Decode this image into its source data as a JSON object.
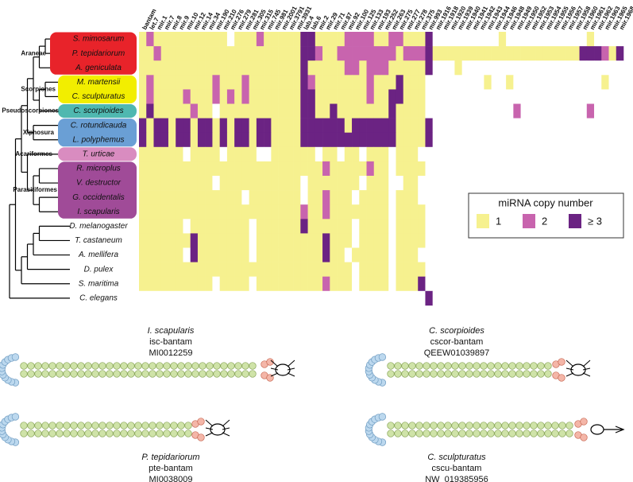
{
  "chart_data": {
    "type": "heatmap",
    "categories": [
      "bantam",
      "let.7",
      "mir.1",
      "mir.7",
      "mir.8",
      "mir.9",
      "mir.10",
      "mir.12",
      "mir.14",
      "mir.34",
      "mir.190",
      "mir.210",
      "mir.276",
      "mir.279",
      "mir.281",
      "mir.305",
      "mir.315",
      "mir.745",
      "mir.981",
      "mir.2001",
      "mir.3791",
      "mir.3931",
      "lab.4",
      "lab.6",
      "mir.2",
      "mir.29",
      "mir.71",
      "mir.87",
      "mir.92",
      "mir.100",
      "mir.125",
      "mir.133",
      "mir.193",
      "mir.252",
      "mir.263",
      "mir.275",
      "mir.277",
      "mir.278",
      "mir.375",
      "mir.993",
      "mir.1916",
      "mir.1918",
      "mir.1920",
      "mir.1939",
      "mir.1940",
      "mir.1941",
      "mir.1942",
      "mir.1943",
      "mir.1944",
      "mir.1946",
      "mir.1948",
      "mir.1949",
      "mir.1950",
      "mir.1952",
      "mir.1953",
      "mir.1954",
      "mir.1955",
      "mir.1956",
      "mir.1957",
      "mir.1958",
      "mir.1960",
      "mir.1961",
      "mir.1962",
      "mir.1963",
      "mir.1965",
      "mir.1968"
    ],
    "category_highlights": [
      {
        "index": 0,
        "color": "#3a9ad9"
      },
      {
        "index": 10,
        "color": "#3a9ad9"
      },
      {
        "index": 2,
        "color": "#e0262c"
      },
      {
        "index": 23,
        "color": "#e0262c"
      },
      {
        "index": 26,
        "color": "#e0262c"
      },
      {
        "index": 34,
        "color": "#e0262c"
      }
    ],
    "rows": [
      "S. mimosarum",
      "P. tepidariorum",
      "A. geniculata",
      "M. martensii",
      "C. sculpturatus",
      "C. scorpioides",
      "C. rotundicauda",
      "L. polyphemus",
      "T. urticae",
      "R. microplus",
      "V. destructor",
      "G. occidentalis",
      "I. scapularis",
      "D. melanogaster",
      "T. castaneum",
      "A. mellifera",
      "D. pulex",
      "S. maritima",
      "C. elegans"
    ],
    "values": [
      [
        1,
        2,
        1,
        1,
        1,
        1,
        1,
        1,
        1,
        1,
        1,
        1,
        0,
        1,
        1,
        1,
        2,
        1,
        1,
        1,
        1,
        1,
        3,
        3,
        1,
        1,
        1,
        1,
        2,
        2,
        2,
        2,
        1,
        1,
        2,
        2,
        1,
        1,
        1,
        3,
        0,
        0,
        0,
        0,
        0,
        0,
        0,
        0,
        0,
        1,
        0,
        0,
        0,
        0,
        0,
        0,
        0,
        0,
        0,
        0,
        0,
        1,
        0,
        0,
        0,
        0
      ],
      [
        1,
        1,
        2,
        1,
        1,
        1,
        1,
        1,
        1,
        1,
        1,
        1,
        1,
        1,
        1,
        1,
        1,
        1,
        1,
        1,
        1,
        1,
        3,
        3,
        2,
        1,
        1,
        2,
        2,
        2,
        2,
        2,
        2,
        2,
        2,
        1,
        2,
        2,
        2,
        3,
        1,
        1,
        1,
        1,
        1,
        1,
        1,
        1,
        1,
        1,
        1,
        1,
        1,
        1,
        1,
        1,
        1,
        1,
        1,
        1,
        3,
        3,
        3,
        2,
        1,
        3
      ],
      [
        1,
        1,
        1,
        1,
        1,
        1,
        1,
        1,
        1,
        1,
        1,
        1,
        1,
        1,
        1,
        1,
        1,
        1,
        1,
        1,
        1,
        1,
        3,
        1,
        1,
        1,
        1,
        1,
        2,
        2,
        1,
        2,
        2,
        2,
        1,
        1,
        1,
        1,
        1,
        3,
        0,
        0,
        0,
        1,
        0,
        0,
        0,
        0,
        0,
        0,
        0,
        0,
        0,
        0,
        0,
        0,
        0,
        0,
        0,
        0,
        0,
        0,
        0,
        0,
        0,
        0
      ],
      [
        1,
        2,
        1,
        1,
        1,
        1,
        1,
        1,
        1,
        1,
        2,
        1,
        1,
        1,
        2,
        1,
        1,
        1,
        1,
        1,
        1,
        1,
        3,
        2,
        1,
        1,
        1,
        1,
        1,
        1,
        1,
        2,
        1,
        1,
        1,
        3,
        1,
        1,
        1,
        0,
        0,
        0,
        0,
        0,
        0,
        0,
        0,
        1,
        0,
        0,
        1,
        0,
        0,
        0,
        0,
        0,
        0,
        0,
        0,
        0,
        0,
        0,
        0,
        1,
        0,
        0
      ],
      [
        1,
        2,
        1,
        1,
        1,
        1,
        2,
        1,
        1,
        1,
        2,
        1,
        2,
        1,
        2,
        1,
        1,
        1,
        1,
        1,
        1,
        1,
        3,
        3,
        1,
        1,
        1,
        1,
        1,
        1,
        1,
        2,
        1,
        1,
        3,
        3,
        1,
        1,
        1,
        0,
        0,
        0,
        0,
        0,
        0,
        0,
        0,
        0,
        0,
        0,
        0,
        0,
        0,
        0,
        0,
        0,
        0,
        0,
        0,
        0,
        0,
        0,
        0,
        0,
        0,
        0
      ],
      [
        1,
        3,
        1,
        1,
        1,
        1,
        1,
        2,
        1,
        1,
        0,
        1,
        1,
        1,
        1,
        1,
        1,
        1,
        1,
        1,
        1,
        1,
        3,
        3,
        1,
        1,
        3,
        1,
        1,
        1,
        1,
        1,
        1,
        1,
        3,
        1,
        1,
        1,
        1,
        0,
        0,
        0,
        0,
        0,
        0,
        0,
        0,
        0,
        0,
        0,
        0,
        2,
        0,
        0,
        0,
        0,
        0,
        0,
        0,
        0,
        0,
        2,
        0,
        0,
        0,
        0
      ],
      [
        3,
        1,
        3,
        3,
        1,
        3,
        3,
        1,
        3,
        3,
        1,
        3,
        1,
        3,
        3,
        1,
        3,
        3,
        1,
        1,
        1,
        1,
        3,
        3,
        3,
        3,
        3,
        3,
        1,
        3,
        3,
        3,
        3,
        3,
        3,
        1,
        1,
        1,
        1,
        3,
        0,
        0,
        0,
        0,
        0,
        0,
        0,
        0,
        0,
        0,
        0,
        0,
        0,
        0,
        0,
        0,
        0,
        0,
        0,
        0,
        0,
        0,
        0,
        0,
        0,
        0
      ],
      [
        3,
        1,
        3,
        3,
        1,
        3,
        3,
        1,
        3,
        3,
        1,
        3,
        1,
        3,
        3,
        1,
        3,
        3,
        1,
        1,
        1,
        1,
        3,
        3,
        3,
        3,
        3,
        3,
        3,
        3,
        3,
        3,
        3,
        3,
        3,
        1,
        1,
        1,
        1,
        3,
        0,
        0,
        0,
        0,
        0,
        0,
        0,
        0,
        0,
        0,
        0,
        0,
        0,
        0,
        0,
        0,
        0,
        0,
        0,
        0,
        0,
        0,
        0,
        0,
        0,
        0
      ],
      [
        1,
        1,
        1,
        1,
        1,
        1,
        0,
        1,
        1,
        1,
        1,
        0,
        1,
        1,
        1,
        1,
        0,
        0,
        1,
        1,
        1,
        1,
        1,
        1,
        0,
        1,
        1,
        0,
        1,
        1,
        0,
        1,
        1,
        1,
        0,
        1,
        1,
        1,
        0,
        0,
        0,
        0,
        0,
        0,
        0,
        0,
        0,
        0,
        0,
        0,
        0,
        0,
        0,
        0,
        0,
        0,
        0,
        0,
        0,
        0,
        0,
        0,
        0,
        0,
        0,
        0
      ],
      [
        1,
        1,
        1,
        1,
        1,
        1,
        1,
        1,
        1,
        1,
        1,
        1,
        1,
        1,
        1,
        1,
        1,
        1,
        1,
        1,
        1,
        1,
        1,
        1,
        1,
        2,
        1,
        1,
        1,
        1,
        1,
        2,
        1,
        1,
        0,
        1,
        1,
        1,
        1,
        0,
        0,
        0,
        0,
        0,
        0,
        0,
        0,
        0,
        0,
        0,
        0,
        0,
        0,
        0,
        0,
        0,
        0,
        0,
        0,
        0,
        0,
        0,
        0,
        0,
        0,
        0
      ],
      [
        1,
        1,
        1,
        1,
        1,
        1,
        1,
        1,
        1,
        1,
        0,
        1,
        1,
        1,
        1,
        1,
        1,
        1,
        1,
        1,
        1,
        1,
        0,
        1,
        1,
        1,
        1,
        1,
        1,
        1,
        0,
        1,
        1,
        1,
        0,
        0,
        1,
        1,
        0,
        0,
        0,
        0,
        0,
        0,
        0,
        0,
        0,
        0,
        0,
        0,
        0,
        0,
        0,
        0,
        0,
        0,
        0,
        0,
        0,
        0,
        0,
        0,
        0,
        0,
        0,
        0
      ],
      [
        1,
        1,
        1,
        1,
        1,
        1,
        1,
        1,
        1,
        1,
        1,
        1,
        1,
        1,
        0,
        1,
        1,
        1,
        1,
        1,
        1,
        1,
        0,
        1,
        1,
        2,
        1,
        1,
        1,
        0,
        1,
        1,
        1,
        1,
        0,
        1,
        1,
        1,
        0,
        0,
        0,
        0,
        0,
        0,
        0,
        0,
        0,
        0,
        0,
        0,
        0,
        0,
        0,
        0,
        0,
        0,
        0,
        0,
        0,
        0,
        0,
        0,
        0,
        0,
        0,
        0
      ],
      [
        1,
        1,
        1,
        1,
        1,
        1,
        1,
        1,
        1,
        1,
        1,
        1,
        1,
        1,
        1,
        1,
        1,
        1,
        1,
        1,
        1,
        1,
        2,
        1,
        1,
        2,
        1,
        1,
        1,
        1,
        1,
        1,
        1,
        1,
        0,
        1,
        1,
        1,
        1,
        0,
        0,
        0,
        0,
        0,
        0,
        0,
        0,
        0,
        0,
        0,
        0,
        0,
        0,
        0,
        0,
        0,
        0,
        0,
        0,
        0,
        0,
        0,
        0,
        0,
        0,
        0
      ],
      [
        1,
        1,
        1,
        1,
        1,
        1,
        0,
        1,
        1,
        1,
        1,
        1,
        1,
        1,
        1,
        0,
        1,
        1,
        1,
        1,
        1,
        1,
        3,
        1,
        1,
        1,
        1,
        1,
        1,
        0,
        1,
        1,
        1,
        1,
        0,
        1,
        1,
        1,
        1,
        0,
        0,
        0,
        0,
        0,
        0,
        0,
        0,
        0,
        0,
        0,
        0,
        0,
        0,
        0,
        0,
        0,
        0,
        0,
        0,
        0,
        0,
        0,
        0,
        0,
        0,
        0
      ],
      [
        1,
        1,
        1,
        1,
        1,
        1,
        1,
        3,
        1,
        1,
        1,
        1,
        1,
        1,
        1,
        0,
        1,
        1,
        1,
        1,
        1,
        1,
        1,
        1,
        1,
        3,
        1,
        1,
        1,
        0,
        1,
        1,
        1,
        1,
        0,
        1,
        1,
        1,
        1,
        0,
        0,
        0,
        0,
        0,
        0,
        0,
        0,
        0,
        0,
        0,
        0,
        0,
        0,
        0,
        0,
        0,
        0,
        0,
        0,
        0,
        0,
        0,
        0,
        0,
        0,
        0
      ],
      [
        1,
        1,
        1,
        1,
        1,
        1,
        0,
        3,
        1,
        1,
        1,
        1,
        1,
        1,
        1,
        0,
        1,
        1,
        1,
        1,
        1,
        1,
        1,
        1,
        1,
        3,
        1,
        1,
        0,
        1,
        1,
        1,
        1,
        1,
        0,
        1,
        1,
        1,
        0,
        0,
        0,
        0,
        0,
        0,
        0,
        0,
        0,
        0,
        0,
        0,
        0,
        0,
        0,
        0,
        0,
        0,
        0,
        0,
        0,
        0,
        0,
        0,
        0,
        0,
        0,
        0
      ],
      [
        1,
        1,
        1,
        1,
        1,
        1,
        1,
        1,
        1,
        1,
        1,
        1,
        1,
        1,
        1,
        1,
        1,
        1,
        1,
        1,
        1,
        1,
        1,
        1,
        1,
        1,
        1,
        1,
        1,
        0,
        1,
        1,
        1,
        1,
        0,
        1,
        1,
        1,
        1,
        0,
        0,
        0,
        0,
        0,
        0,
        0,
        0,
        0,
        0,
        0,
        0,
        0,
        0,
        0,
        0,
        0,
        0,
        0,
        0,
        0,
        0,
        0,
        0,
        0,
        0,
        0
      ],
      [
        1,
        1,
        1,
        1,
        1,
        1,
        1,
        1,
        1,
        1,
        0,
        1,
        1,
        1,
        1,
        0,
        1,
        1,
        1,
        1,
        1,
        1,
        1,
        1,
        1,
        2,
        1,
        1,
        1,
        0,
        1,
        1,
        1,
        1,
        0,
        1,
        1,
        1,
        3,
        0,
        0,
        0,
        0,
        0,
        0,
        0,
        0,
        0,
        0,
        0,
        0,
        0,
        0,
        0,
        0,
        0,
        0,
        0,
        0,
        0,
        0,
        0,
        0,
        0,
        0,
        0
      ],
      [
        0,
        0,
        0,
        0,
        0,
        0,
        0,
        0,
        0,
        0,
        0,
        0,
        0,
        0,
        0,
        0,
        0,
        0,
        0,
        0,
        0,
        0,
        0,
        0,
        0,
        0,
        0,
        0,
        0,
        0,
        0,
        0,
        0,
        0,
        0,
        0,
        0,
        0,
        0,
        3,
        0,
        0,
        0,
        0,
        0,
        0,
        0,
        0,
        0,
        0,
        0,
        0,
        0,
        0,
        0,
        0,
        0,
        0,
        0,
        0,
        0,
        0,
        0,
        0,
        0,
        0
      ]
    ],
    "colors": [
      "#ffffff",
      "#f6f18f",
      "#c864ae",
      "#6b2383"
    ],
    "legend_title": "miRNA copy number",
    "legend_levels": [
      1,
      2,
      {
        "value": 3,
        "label": "≥ 3"
      }
    ],
    "groups": [
      {
        "name": "Araneae",
        "color": "#e8232a",
        "label_color": "#8b1a1a"
      },
      {
        "name": "Scorpiones",
        "color": "#f2ee00",
        "label_color": "#8a8400"
      },
      {
        "name": "Pseudoscorpiones",
        "color": "#4fb8b0",
        "label_color": "#1d6f6a"
      },
      {
        "name": "Xiphosura",
        "color": "#6a9fd5",
        "label_color": "#2d5b8f"
      },
      {
        "name": "Acariformes",
        "color": "#d98cc0",
        "label_color": "#7a3a6c"
      },
      {
        "name": "Parasitiformes",
        "color": "#a04b98",
        "label_color": "#5a2356"
      }
    ]
  },
  "structures": [
    {
      "species": "I. scapularis",
      "name": "isc-bantam",
      "accession": "MI0012259"
    },
    {
      "species": "C. scorpioides",
      "name": "cscor-bantam",
      "accession": "QEEW01039897"
    },
    {
      "species": "P. tepidariorum",
      "name": "pte-bantam",
      "accession": "MI0038009"
    },
    {
      "species": "C. sculpturatus",
      "name": "cscu-bantam",
      "accession": "NW_019385956"
    }
  ]
}
